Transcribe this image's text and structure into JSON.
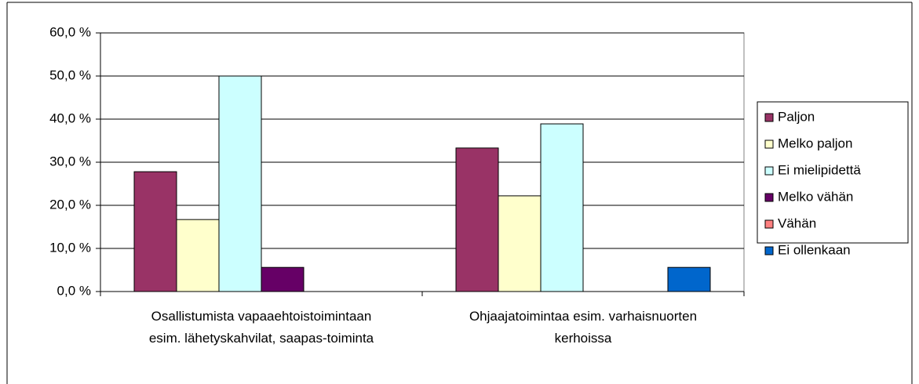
{
  "chart_data": {
    "type": "bar",
    "categories": [
      "Osallistumista vapaaehtoistoimintaan esim. lähetyskahvilat, saapas-toiminta",
      "Ohjaajatoimintaa esim. varhaisnuorten kerhoissa"
    ],
    "series": [
      {
        "name": "Paljon",
        "color": "#993366",
        "values": [
          27.8,
          33.3
        ]
      },
      {
        "name": "Melko paljon",
        "color": "#ffffcc",
        "values": [
          16.7,
          22.2
        ]
      },
      {
        "name": "Ei mielipidettä",
        "color": "#ccffff",
        "values": [
          50.0,
          38.9
        ]
      },
      {
        "name": "Melko vähän",
        "color": "#660066",
        "values": [
          5.6,
          0
        ]
      },
      {
        "name": "Vähän",
        "color": "#ff8080",
        "values": [
          0,
          0
        ]
      },
      {
        "name": "Ei ollenkaan",
        "color": "#0066cc",
        "values": [
          0,
          5.6
        ]
      }
    ],
    "ylim": [
      0,
      60
    ],
    "yticks": [
      {
        "value": 0,
        "label": "0,0 %"
      },
      {
        "value": 10,
        "label": "10,0 %"
      },
      {
        "value": 20,
        "label": "20,0 %"
      },
      {
        "value": 30,
        "label": "30,0 %"
      },
      {
        "value": 40,
        "label": "40,0 %"
      },
      {
        "value": 50,
        "label": "50,0 %"
      },
      {
        "value": 60,
        "label": "60,0 %"
      }
    ],
    "grid": true,
    "legend": "right"
  }
}
